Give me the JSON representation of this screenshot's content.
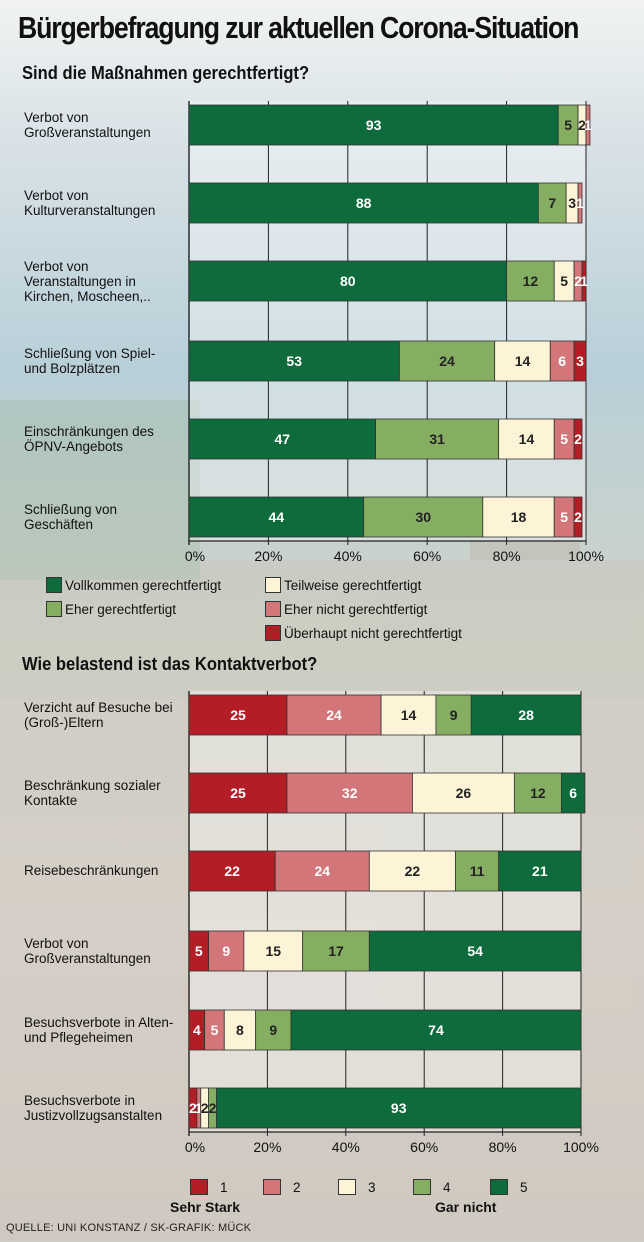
{
  "title": "Bürgerbefragung zur aktuellen Corona-Situation",
  "source": "QUELLE: UNI KONSTANZ / SK-GRAFIK: MÜCK",
  "colors": {
    "c1": "#0d6b3c",
    "c2": "#86ae62",
    "c3": "#fdf4d7",
    "c4": "#d3767a",
    "c5": "#b31e26"
  },
  "chart_data": [
    {
      "type": "bar",
      "orientation": "horizontal-stacked",
      "title": "Sind die Maßnahmen gerechtfertigt?",
      "categories": [
        "Verbot von Großveranstaltungen",
        "Verbot von Kulturveranstaltungen",
        "Verbot von Veranstaltungen in Kirchen, Moscheen,..",
        "Schließung von Spiel- und Bolzplätzen",
        "Einschränkungen des ÖPNV-Angebots",
        "Schließung von Geschäften"
      ],
      "series": [
        {
          "name": "Vollkommen gerechtfertigt",
          "values": [
            93,
            88,
            80,
            53,
            47,
            44
          ]
        },
        {
          "name": "Eher gerechtfertigt",
          "values": [
            5,
            7,
            12,
            24,
            31,
            30
          ]
        },
        {
          "name": "Teilweise gerechtfertigt",
          "values": [
            2,
            3,
            5,
            14,
            14,
            18
          ]
        },
        {
          "name": "Eher nicht gerechtfertigt",
          "values": [
            1,
            1,
            2,
            6,
            5,
            5
          ]
        },
        {
          "name": "Überhaupt nicht gerechtfertigt",
          "values": [
            0,
            0,
            1,
            3,
            2,
            2
          ]
        }
      ],
      "xlim": [
        0,
        100
      ],
      "xticks": [
        "0%",
        "20%",
        "40%",
        "60%",
        "80%",
        "100%"
      ],
      "legend": "bottom"
    },
    {
      "type": "bar",
      "orientation": "horizontal-stacked",
      "title": "Wie belastend ist das Kontaktverbot?",
      "categories": [
        "Verzicht auf Besuche bei (Groß-)Eltern",
        "Beschränkung sozialer Kontakte",
        "Reisebeschränkungen",
        "Verbot von Großveranstaltungen",
        "Besuchsverbote in Alten- und Pflegeheimen",
        "Besuchsverbote in Justizvollzugsanstalten"
      ],
      "series": [
        {
          "name": "1",
          "values": [
            25,
            25,
            22,
            5,
            4,
            2
          ]
        },
        {
          "name": "2",
          "values": [
            24,
            32,
            24,
            9,
            5,
            1
          ]
        },
        {
          "name": "3",
          "values": [
            14,
            26,
            22,
            15,
            8,
            2
          ]
        },
        {
          "name": "4",
          "values": [
            9,
            12,
            11,
            17,
            9,
            2
          ]
        },
        {
          "name": "5",
          "values": [
            28,
            6,
            21,
            54,
            74,
            93
          ]
        }
      ],
      "xlim": [
        0,
        100
      ],
      "xticks": [
        "0%",
        "20%",
        "40%",
        "60%",
        "80%",
        "100%"
      ],
      "scale_low_label": "Sehr Stark",
      "scale_high_label": "Gar nicht",
      "legend": "bottom"
    }
  ]
}
